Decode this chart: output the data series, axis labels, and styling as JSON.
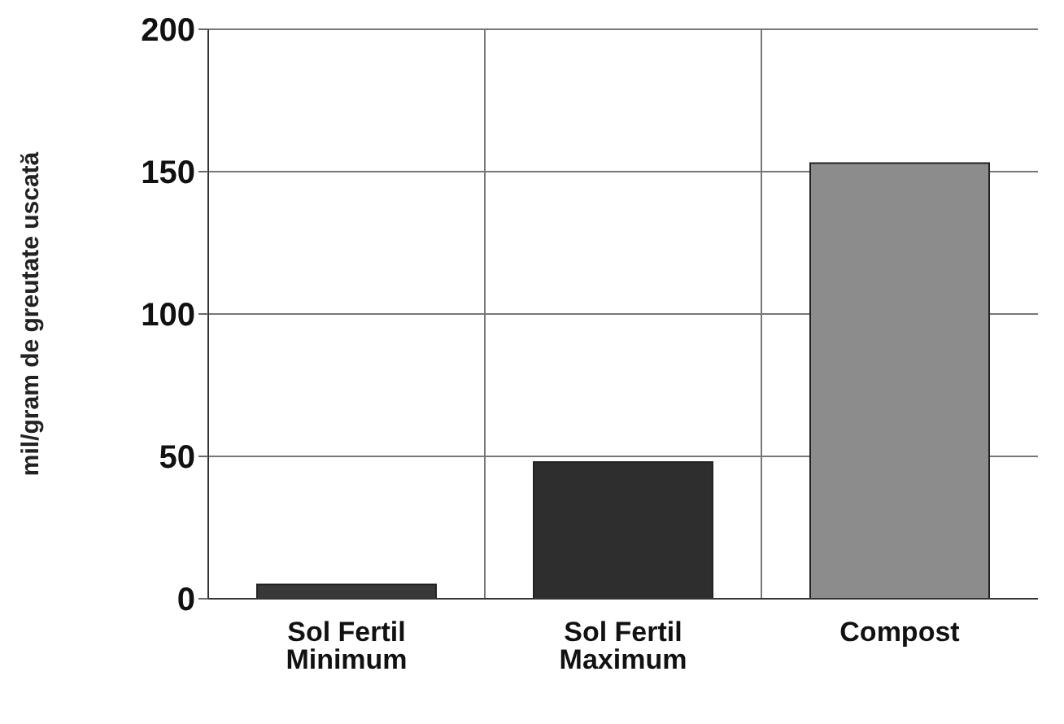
{
  "chart_data": {
    "type": "bar",
    "ylabel": "mil/gram de greutate uscată",
    "categories": [
      "Sol Fertil Minimum",
      "Sol Fertil Maximum",
      "Compost"
    ],
    "values": [
      5,
      48,
      153
    ],
    "colors": [
      "#383838",
      "#2e2e2e",
      "#8c8c8c"
    ],
    "ylim": [
      0,
      200
    ],
    "yticks": [
      0,
      50,
      100,
      150,
      200
    ],
    "grid": true
  }
}
